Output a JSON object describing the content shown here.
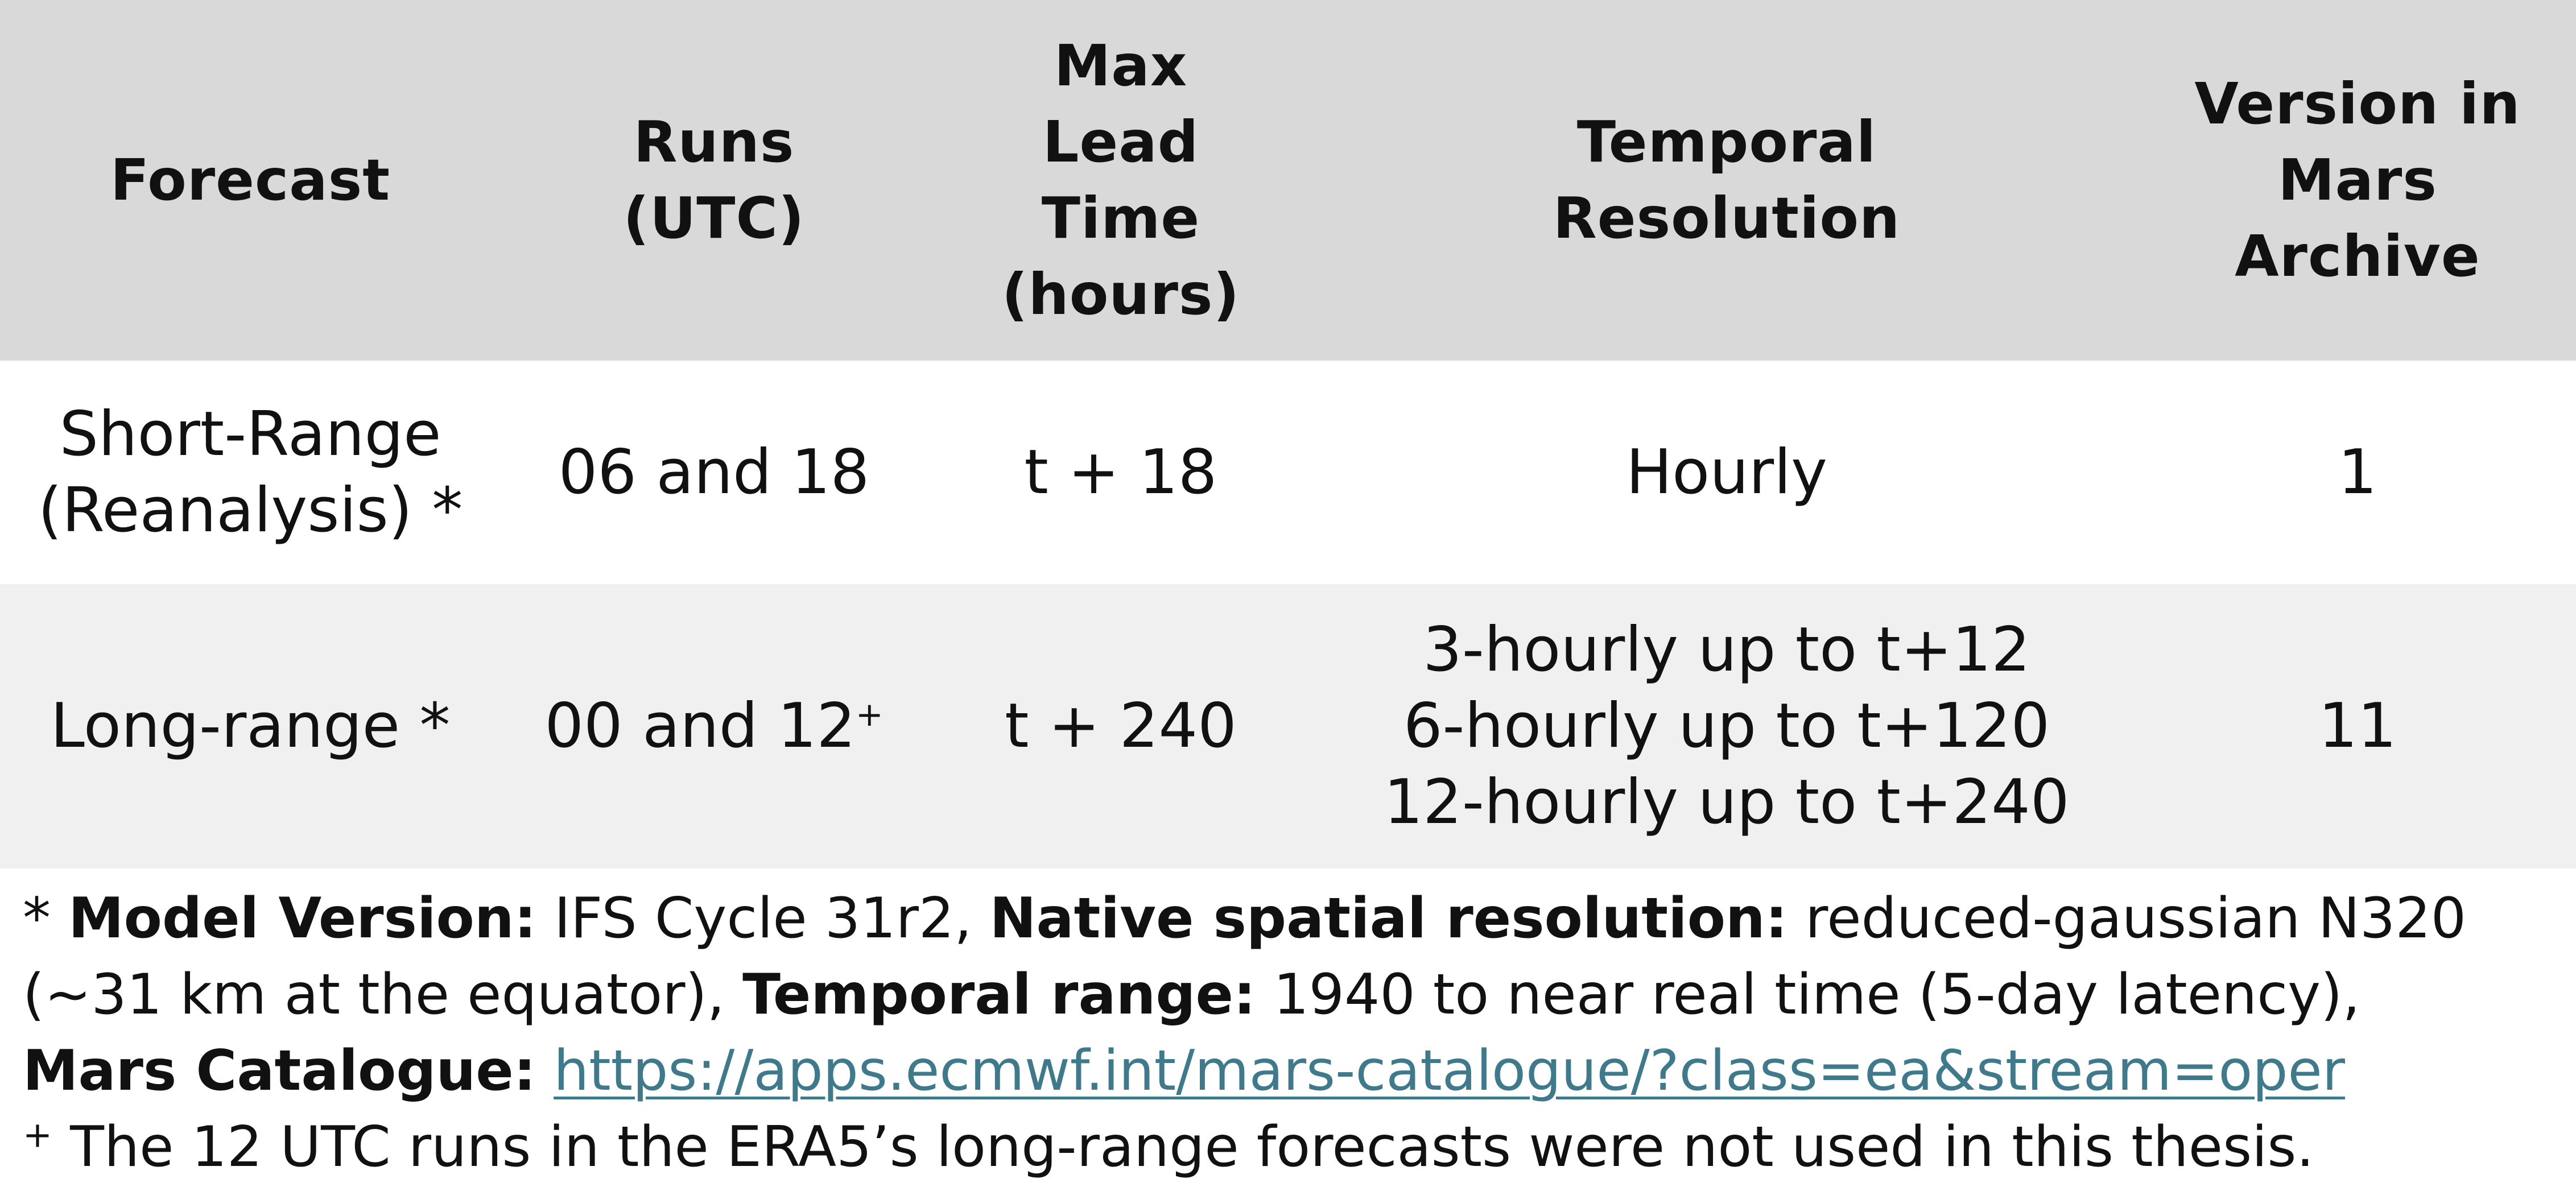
{
  "table": {
    "headers": [
      [
        "Forecast"
      ],
      [
        "Runs",
        "(UTC)"
      ],
      [
        "Max",
        "Lead",
        "Time",
        "(hours)"
      ],
      [
        "Temporal",
        "Resolution"
      ],
      [
        "Version in",
        "Mars",
        "Archive"
      ]
    ],
    "rows": [
      {
        "forecast": [
          "Short-Range",
          "(Reanalysis) *"
        ],
        "runs": "06 and 18",
        "runs_sup": "",
        "lead_time": "t + 18",
        "temporal": [
          "Hourly"
        ],
        "version": "1"
      },
      {
        "forecast": [
          "Long-range *"
        ],
        "runs": "00 and 12",
        "runs_sup": "+",
        "lead_time": "t + 240",
        "temporal": [
          "3-hourly up to t+12",
          "6-hourly up to t+120",
          "12-hourly up to t+240"
        ],
        "version": "11"
      }
    ]
  },
  "footnotes": {
    "star_marker": "*",
    "model_version_label": "Model Version:",
    "model_version_value": "IFS Cycle 31r2,",
    "spatial_label": "Native spatial resolution:",
    "spatial_value": "reduced-gaussian N320",
    "spatial_value_cont": "(~31 km at the equator),",
    "temporal_range_label": "Temporal range:",
    "temporal_range_value": "1940 to near real time (5-day latency),",
    "catalogue_label": "Mars Catalogue:",
    "catalogue_url": "https://apps.ecmwf.int/mars-catalogue/?class=ea&stream=oper",
    "plus_marker": "+",
    "plus_note": "The 12 UTC runs in the ERA5’s long-range forecasts were not used in this thesis."
  },
  "colors": {
    "header_bg": "#d9d9d9",
    "row_alt_bg": "#f0f0f0",
    "link": "#3f7a8c"
  }
}
